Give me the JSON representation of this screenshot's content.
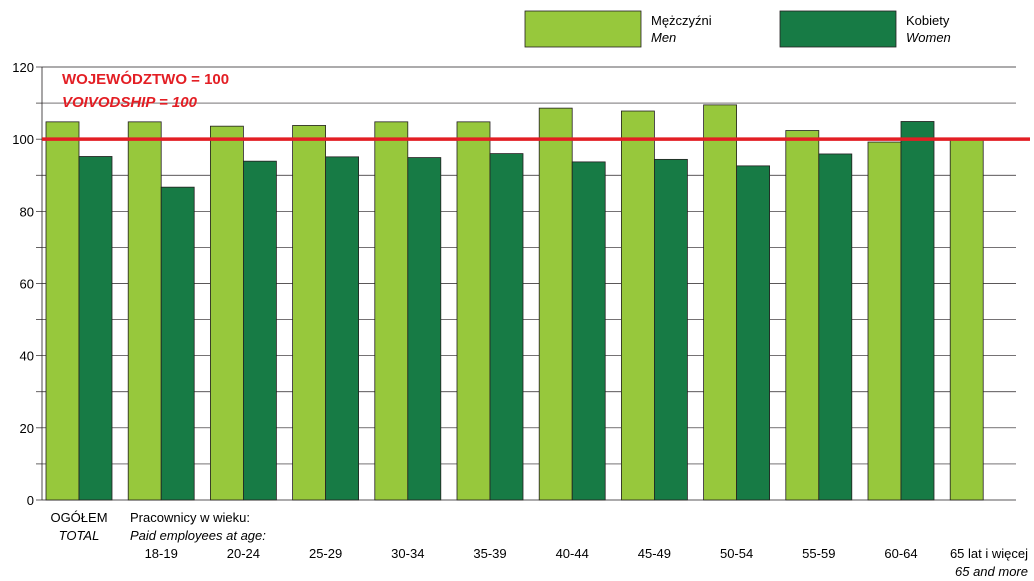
{
  "chart_data": {
    "type": "bar",
    "ylim": [
      0,
      120
    ],
    "yticks": [
      0,
      20,
      40,
      60,
      80,
      100,
      120
    ],
    "grid": true,
    "legend_position": "top-right",
    "reference_line": {
      "value": 100,
      "label_pl": "WOJEWÓDZTWO = 100",
      "label_en": "VOIVODSHIP = 100",
      "color": "#e31e24"
    },
    "group_heading": {
      "pl": "Pracownicy w wieku:",
      "en": "Paid employees at age:"
    },
    "categories": [
      {
        "label": "OGÓŁEM",
        "label_en": "TOTAL"
      },
      {
        "label": "18-19",
        "label_en": ""
      },
      {
        "label": "20-24",
        "label_en": ""
      },
      {
        "label": "25-29",
        "label_en": ""
      },
      {
        "label": "30-34",
        "label_en": ""
      },
      {
        "label": "35-39",
        "label_en": ""
      },
      {
        "label": "40-44",
        "label_en": ""
      },
      {
        "label": "45-49",
        "label_en": ""
      },
      {
        "label": "50-54",
        "label_en": ""
      },
      {
        "label": "55-59",
        "label_en": ""
      },
      {
        "label": "60-64",
        "label_en": ""
      },
      {
        "label": "65 lat i więcej",
        "label_en": "65 and more"
      }
    ],
    "series": [
      {
        "name": "Mężczyźni",
        "name_en": "Men",
        "color": "#97c83c",
        "values": [
          104.8,
          104.8,
          103.6,
          103.8,
          104.8,
          104.8,
          108.6,
          107.8,
          109.5,
          102.4,
          99.2,
          100.0
        ]
      },
      {
        "name": "Kobiety",
        "name_en": "Women",
        "color": "#177b45",
        "values": [
          95.2,
          86.7,
          93.9,
          95.1,
          94.9,
          96.0,
          93.7,
          94.4,
          92.6,
          95.9,
          104.9,
          null
        ]
      }
    ]
  }
}
